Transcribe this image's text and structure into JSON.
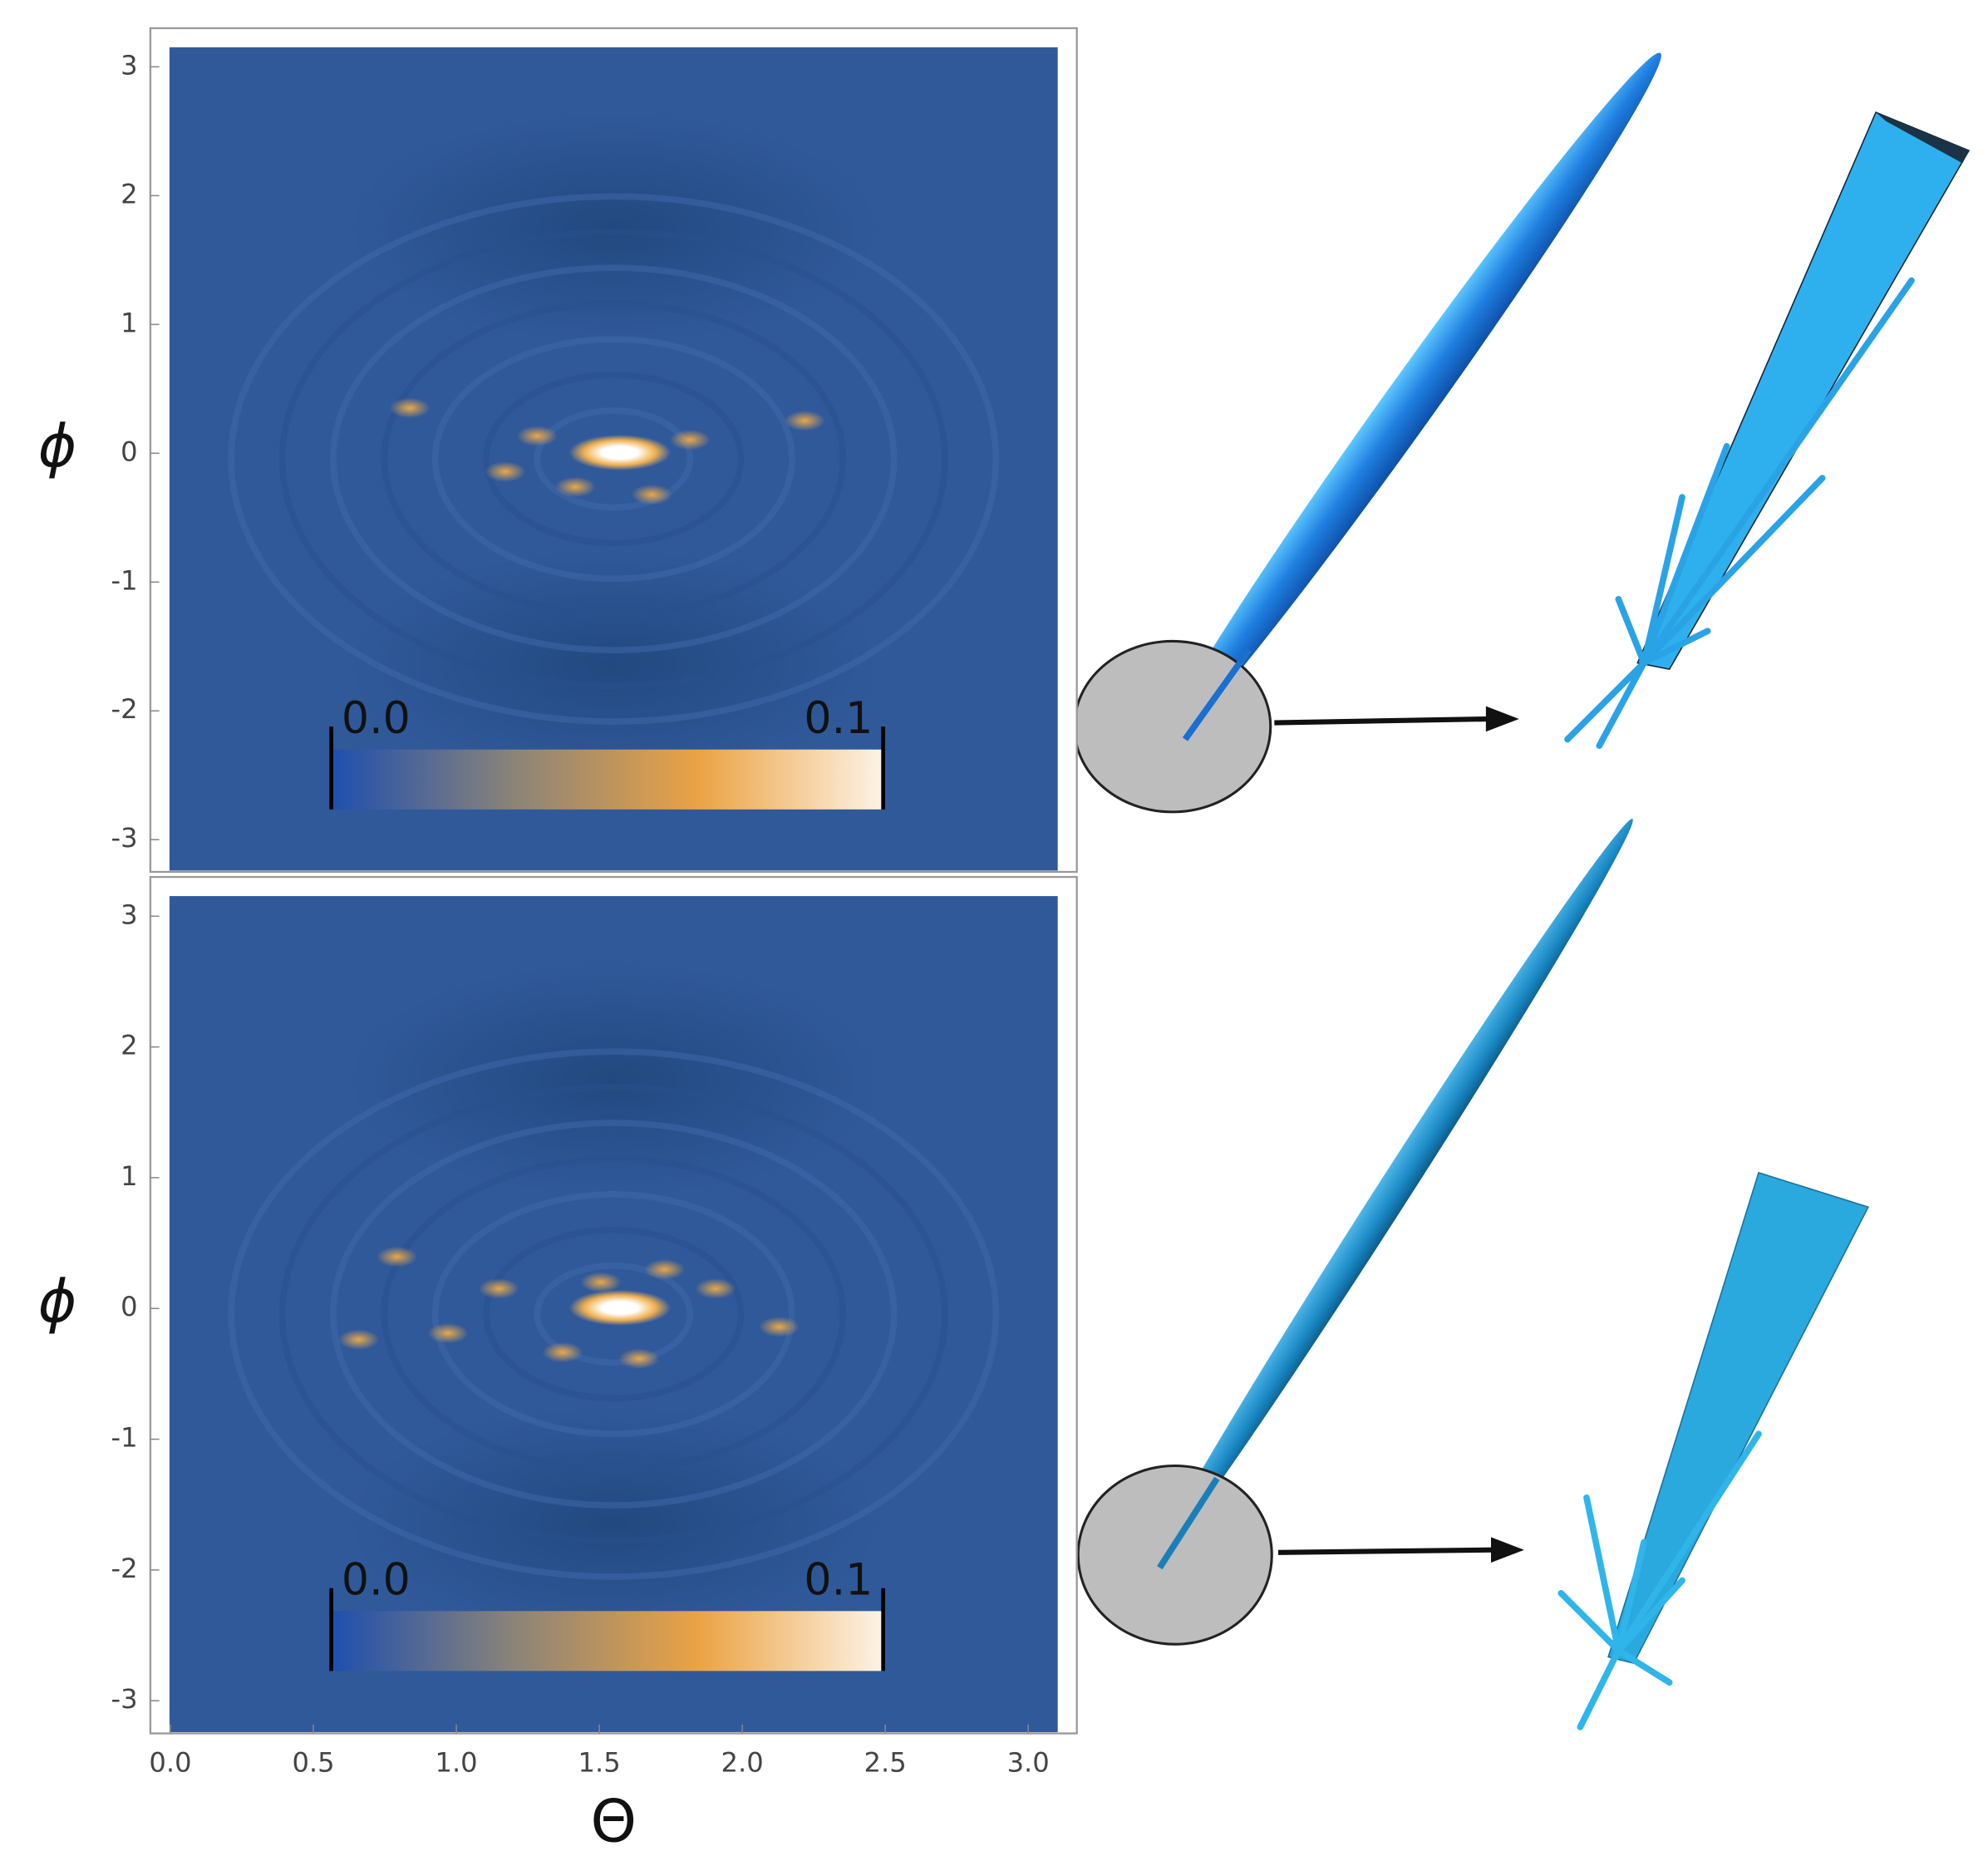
{
  "chart_data": [
    {
      "type": "heatmap",
      "y_label": "ϕ",
      "xlim": [
        -0.07,
        3.17
      ],
      "ylim": [
        -3.25,
        3.3
      ],
      "yticks": [
        -3,
        -2,
        -1,
        0,
        1,
        2,
        3
      ],
      "color": "#30599a",
      "colorbar": {
        "lim": [
          0,
          0.1
        ],
        "ticks": [
          {
            "value": 0,
            "label": "0.0"
          },
          0.1
        ],
        "colors": [
          "#1e4fae",
          "#8c8478",
          "#eba344",
          "#fdf3e6"
        ]
      }
    },
    {
      "type": "heatmap",
      "y_label": "ϕ",
      "x_label": "Θ",
      "xlim": [
        -0.07,
        3.17
      ],
      "ylim": [
        -3.25,
        3.3
      ],
      "yticks": [
        -3,
        -2,
        -1,
        0,
        1,
        2,
        3
      ],
      "xticks": [
        {
          "value": 0,
          "label": "0.0"
        },
        0.5,
        {
          "value": 1,
          "label": "1.0"
        },
        1.5,
        {
          "value": 2,
          "label": "2.0"
        },
        2.5,
        {
          "value": 3,
          "label": "3.0"
        }
      ],
      "color": "#30599a",
      "colorbar": {
        "lim": [
          0,
          0.1
        ],
        "ticks": [
          {
            "value": 0,
            "label": "0.0"
          },
          0.1
        ],
        "colors": [
          "#1e4fae",
          "#8c8478",
          "#eba344",
          "#fdf3e6"
        ]
      }
    }
  ]
}
